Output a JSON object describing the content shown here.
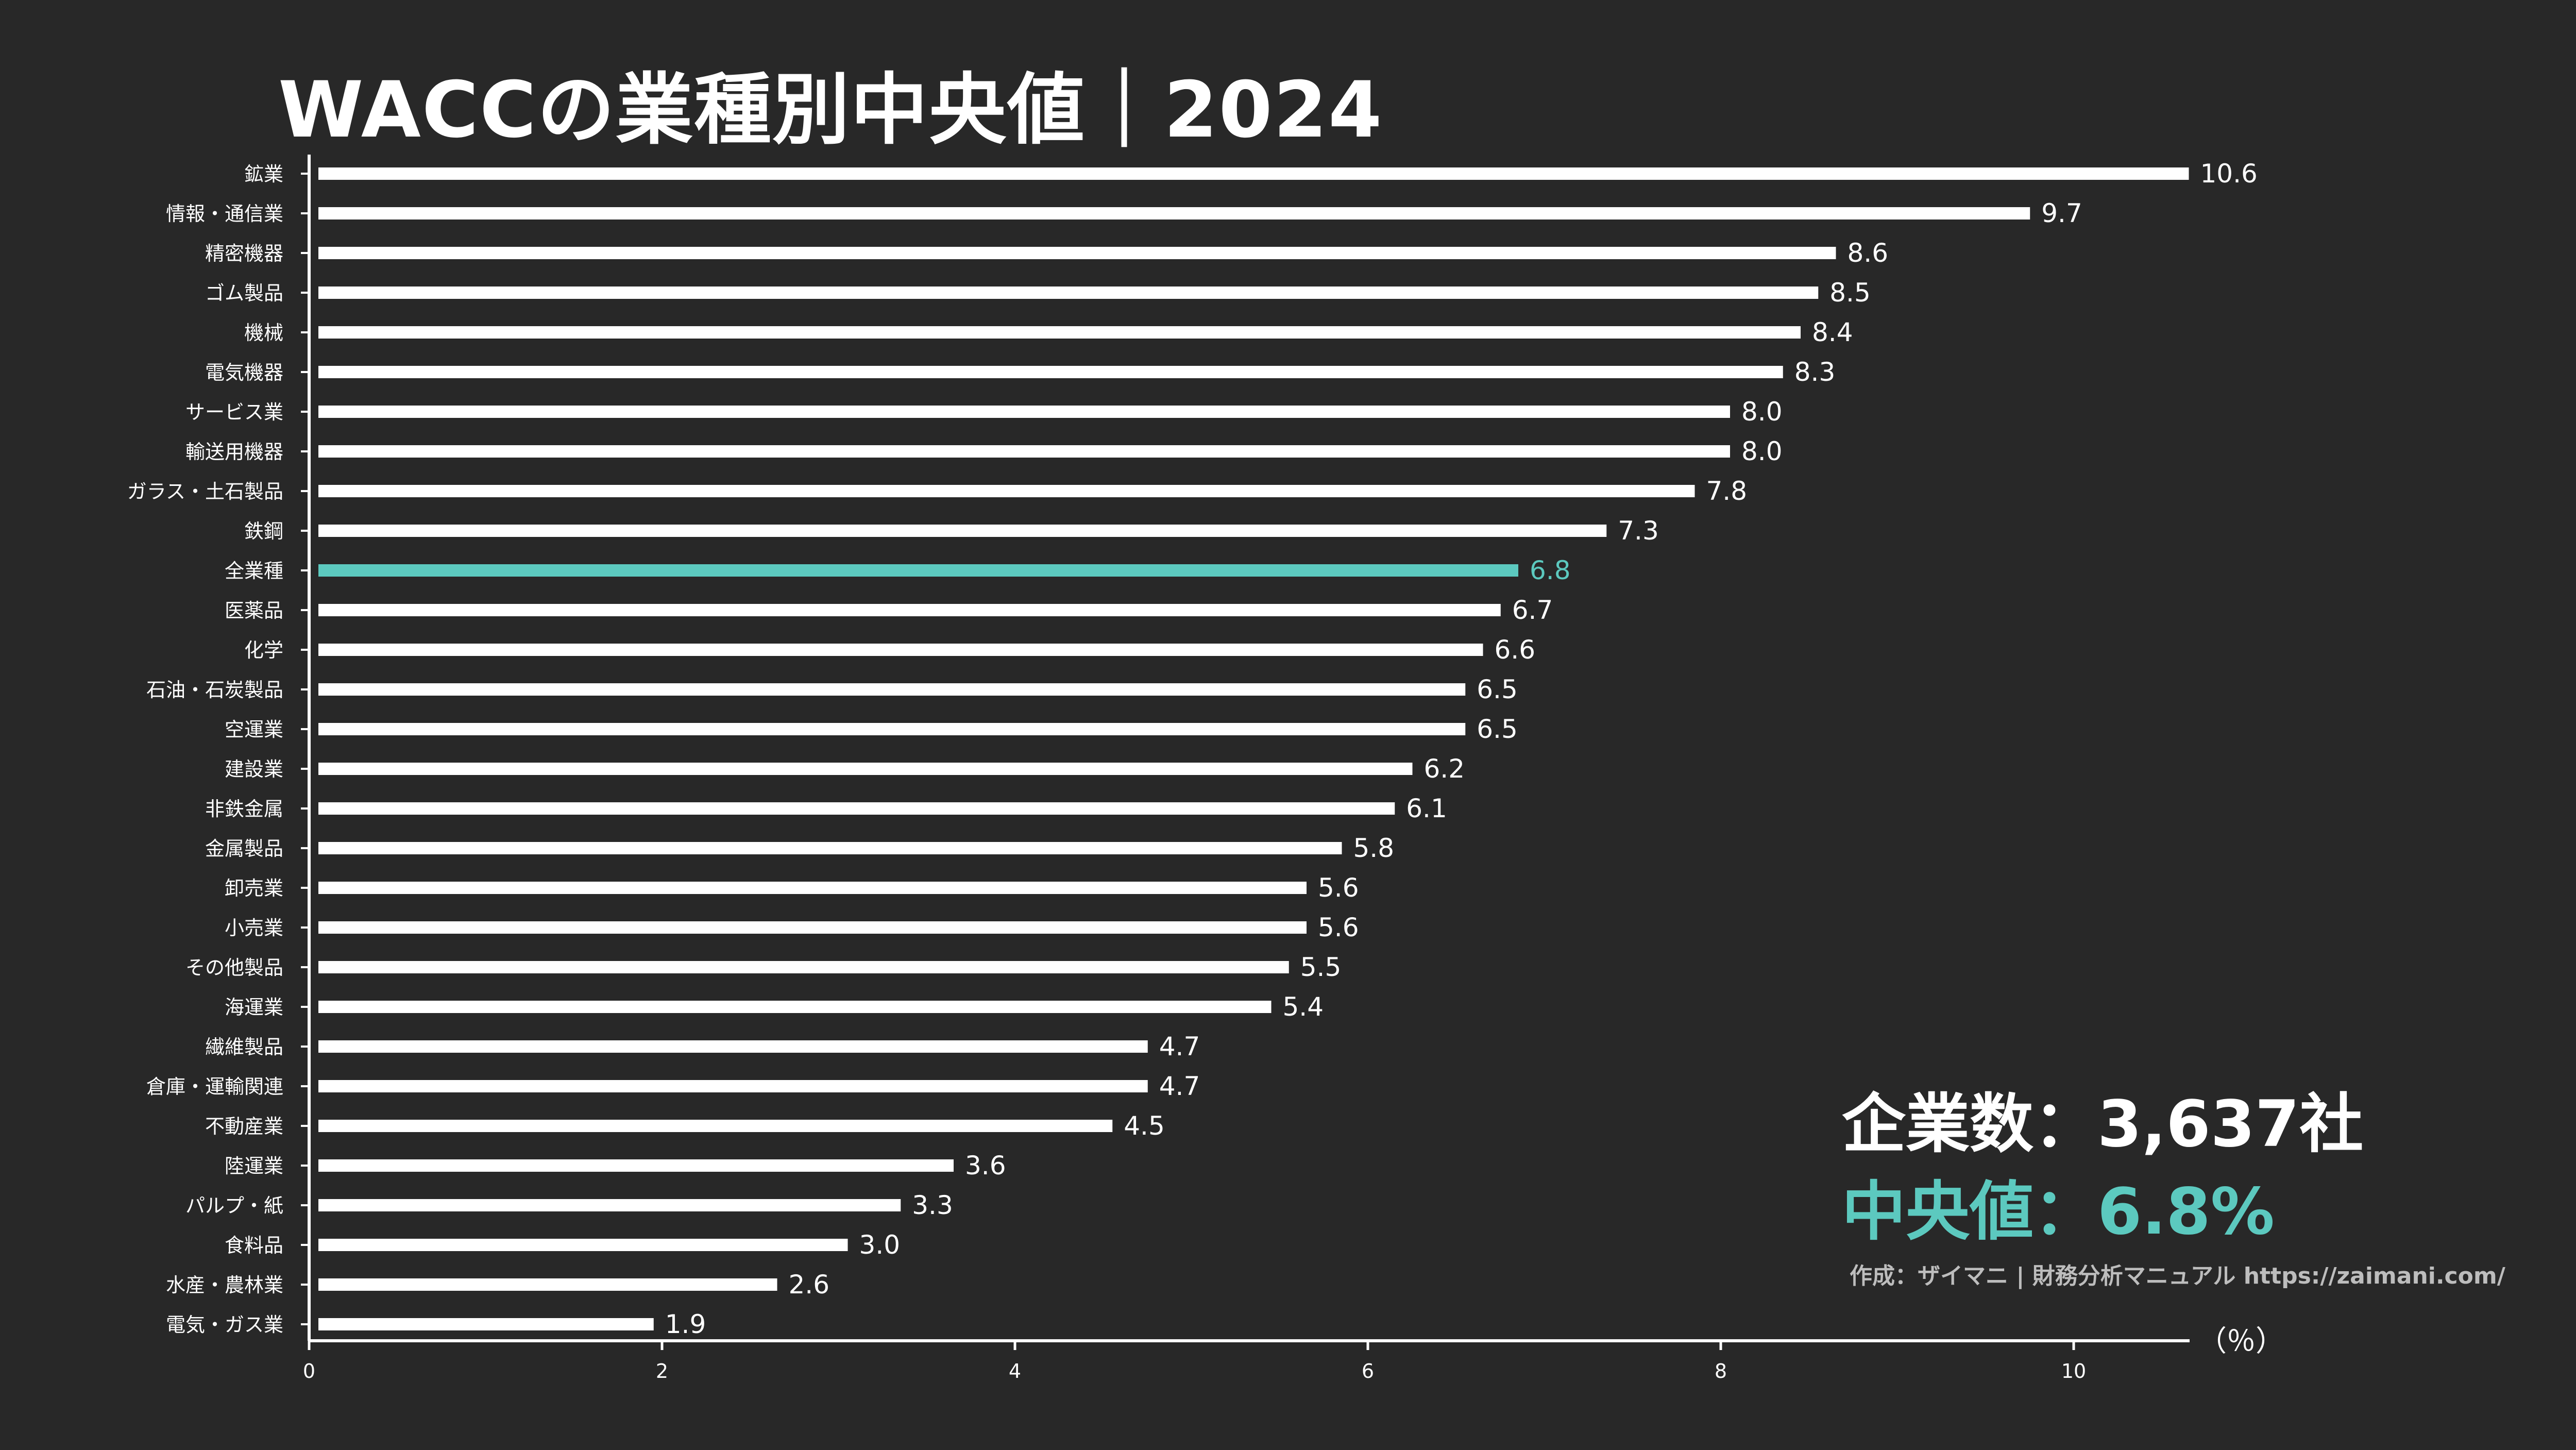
{
  "title": "WACCの業種別中央値｜2024",
  "stats": {
    "count_text": "企業数：3,637社",
    "median_text": "中央値：6.8%"
  },
  "credit": "作成：ザイマニ | 財務分析マニュアル https://zaimani.com/",
  "colors": {
    "background": "#282828",
    "bar": "#ffffff",
    "highlight": "#5cc9bf",
    "text": "#ffffff",
    "credit": "#bdbdbd"
  },
  "chart_data": {
    "type": "bar",
    "orientation": "horizontal",
    "unit_label": "（％）",
    "xlim": [
      0,
      10.6
    ],
    "xticks": [
      "0",
      "2",
      "4",
      "6",
      "8",
      "10"
    ],
    "highlight_category": "全業種",
    "categories": [
      "鉱業",
      "情報・通信業",
      "精密機器",
      "ゴム製品",
      "機械",
      "電気機器",
      "サービス業",
      "輸送用機器",
      "ガラス・土石製品",
      "鉄鋼",
      "全業種",
      "医薬品",
      "化学",
      "石油・石炭製品",
      "空運業",
      "建設業",
      "非鉄金属",
      "金属製品",
      "卸売業",
      "小売業",
      "その他製品",
      "海運業",
      "繊維製品",
      "倉庫・運輸関連",
      "不動産業",
      "陸運業",
      "パルプ・紙",
      "食料品",
      "水産・農林業",
      "電気・ガス業"
    ],
    "values": [
      10.6,
      9.7,
      8.6,
      8.5,
      8.4,
      8.3,
      8.0,
      8.0,
      7.8,
      7.3,
      6.8,
      6.7,
      6.6,
      6.5,
      6.5,
      6.2,
      6.1,
      5.8,
      5.6,
      5.6,
      5.5,
      5.4,
      4.7,
      4.7,
      4.5,
      3.6,
      3.3,
      3.0,
      2.6,
      1.9
    ],
    "value_labels": [
      "10.6",
      "9.7",
      "8.6",
      "8.5",
      "8.4",
      "8.3",
      "8.0",
      "8.0",
      "7.8",
      "7.3",
      "6.8",
      "6.7",
      "6.6",
      "6.5",
      "6.5",
      "6.2",
      "6.1",
      "5.8",
      "5.6",
      "5.6",
      "5.5",
      "5.4",
      "4.7",
      "4.7",
      "4.5",
      "3.6",
      "3.3",
      "3.0",
      "2.6",
      "1.9"
    ],
    "grid": false,
    "legend": "none"
  }
}
